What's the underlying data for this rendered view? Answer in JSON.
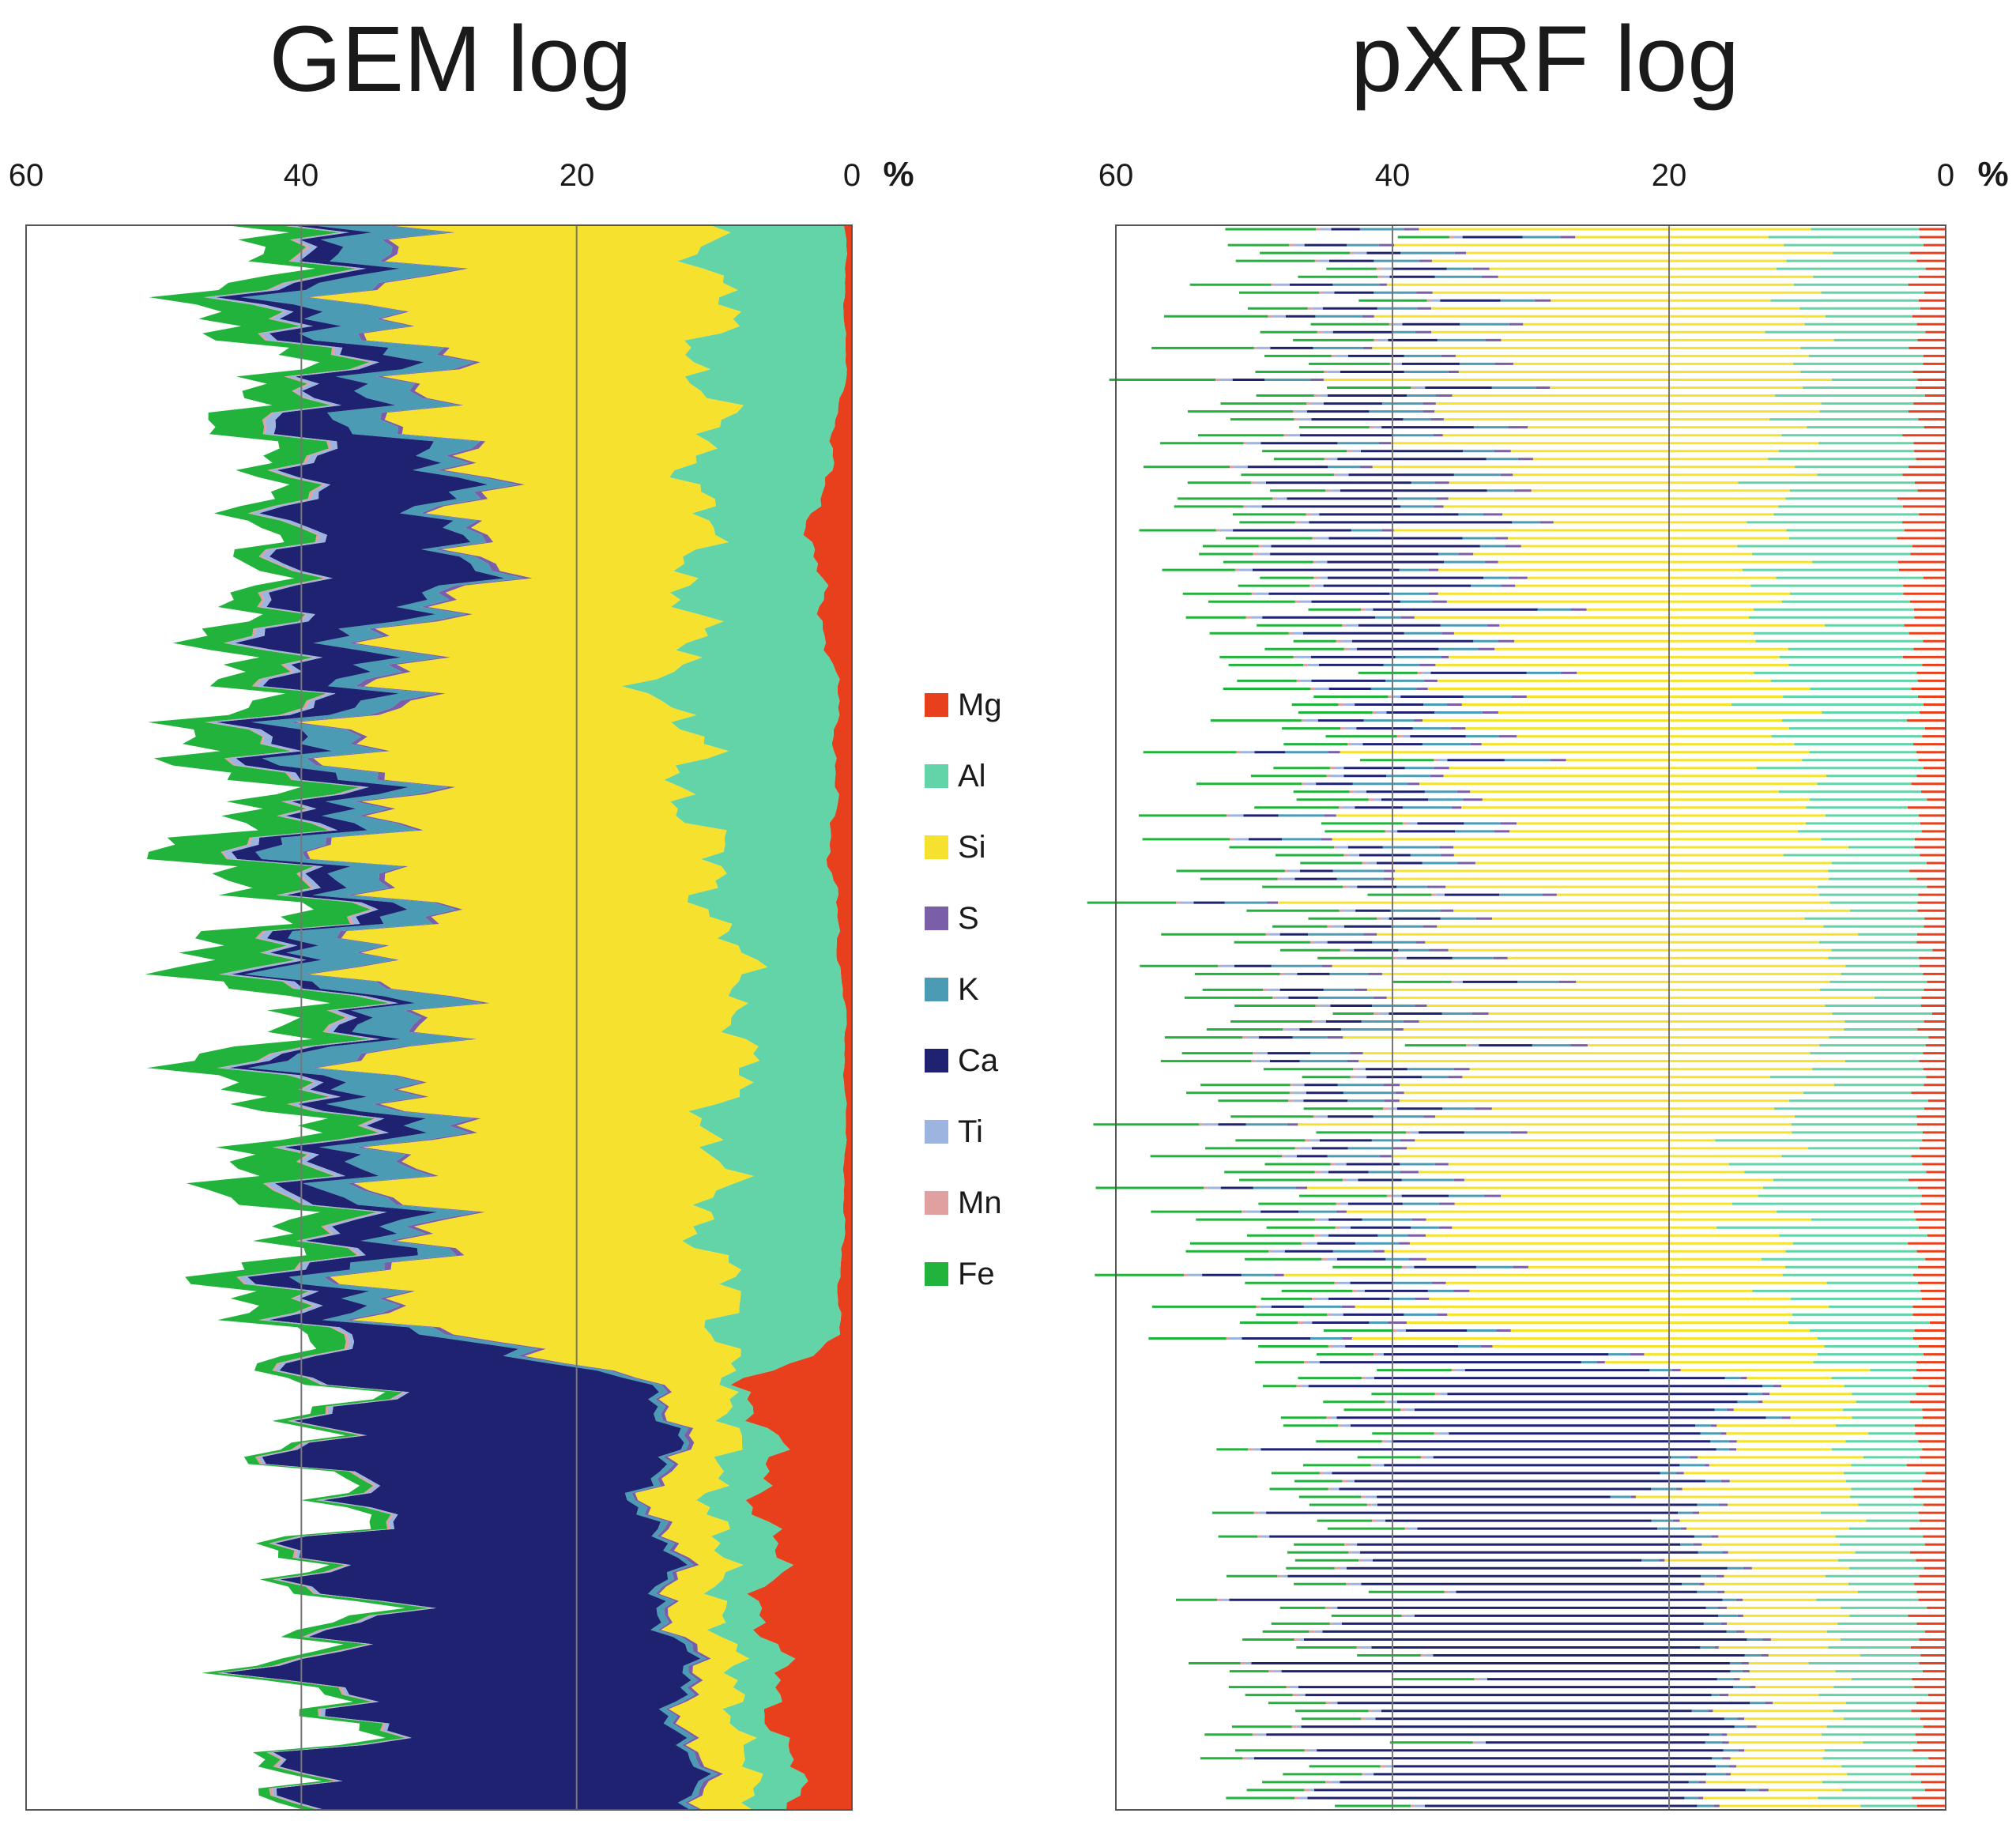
{
  "figure": {
    "left_title": "GEM log",
    "right_title": "pXRF log",
    "unit": "%"
  },
  "legend": [
    {
      "name": "Mg",
      "color": "#e8401c"
    },
    {
      "name": "Al",
      "color": "#63d3a8"
    },
    {
      "name": "Si",
      "color": "#f6e22e"
    },
    {
      "name": "S",
      "color": "#7a5fa8"
    },
    {
      "name": "K",
      "color": "#4b9bb5"
    },
    {
      "name": "Ca",
      "color": "#1e2270"
    },
    {
      "name": "Ti",
      "color": "#9db4e0"
    },
    {
      "name": "Mn",
      "color": "#e0a0a0"
    },
    {
      "name": "Fe",
      "color": "#22b33c"
    }
  ],
  "chart_data": [
    {
      "type": "area",
      "title": "GEM log",
      "orientation": "horizontal-stacked, depth downward",
      "xlim": [
        60,
        0
      ],
      "x_ticks": [
        "60",
        "40",
        "20",
        "0"
      ],
      "unit": "%",
      "grid": true,
      "series_order": [
        "Mg",
        "Al",
        "Si",
        "S",
        "K",
        "Ca",
        "Ti",
        "Mn",
        "Fe"
      ],
      "depth_fraction": [
        0,
        0.1,
        0.2,
        0.3,
        0.4,
        0.5,
        0.6,
        0.7,
        0.73,
        0.8,
        0.9,
        1.0
      ],
      "series": [
        {
          "name": "Mg",
          "values": [
            0.5,
            0.5,
            3,
            1,
            1.5,
            0.5,
            0.5,
            1,
            7,
            6,
            6,
            4
          ]
        },
        {
          "name": "Al",
          "values": [
            9,
            10,
            8,
            12,
            9,
            7,
            10,
            8,
            1,
            4,
            3,
            3
          ]
        },
        {
          "name": "Si",
          "values": [
            25,
            21,
            15,
            22,
            24,
            25,
            21,
            24,
            4,
            4,
            3,
            4
          ]
        },
        {
          "name": "S",
          "values": [
            0.4,
            0.4,
            0.5,
            0.6,
            0.4,
            0.4,
            0.5,
            0.5,
            0.3,
            0.3,
            0.3,
            0.3
          ]
        },
        {
          "name": "K",
          "values": [
            5,
            4,
            1,
            3,
            3,
            5,
            3,
            2,
            0.5,
            0.5,
            0.5,
            0.5
          ]
        },
        {
          "name": "Ca",
          "values": [
            1.5,
            3,
            13,
            3,
            2,
            1,
            3,
            4,
            26,
            22,
            25,
            26
          ]
        },
        {
          "name": "Ti",
          "values": [
            0.6,
            0.6,
            0.5,
            0.6,
            0.5,
            0.6,
            0.6,
            0.5,
            0.3,
            0.3,
            0.3,
            0.3
          ]
        },
        {
          "name": "Mn",
          "values": [
            0.2,
            0.2,
            0.2,
            0.2,
            0.2,
            0.2,
            0.2,
            0.2,
            0.2,
            0.2,
            0.2,
            0.2
          ]
        },
        {
          "name": "Fe",
          "values": [
            3.5,
            4,
            2,
            4,
            5,
            4.5,
            4.5,
            3,
            1,
            1,
            1.5,
            1
          ]
        }
      ]
    },
    {
      "type": "bar",
      "title": "pXRF log",
      "orientation": "horizontal-stacked, depth downward",
      "xlim": [
        60,
        0
      ],
      "x_ticks": [
        "60",
        "40",
        "20",
        "0"
      ],
      "unit": "%",
      "grid": true,
      "series_order": [
        "Mg",
        "Al",
        "Si",
        "S",
        "K",
        "Ca",
        "Ti",
        "Mn",
        "Fe"
      ],
      "depth_fraction": [
        0,
        0.1,
        0.2,
        0.3,
        0.4,
        0.5,
        0.6,
        0.7,
        0.73,
        0.8,
        0.9,
        1.0
      ],
      "series": [
        {
          "name": "Mg",
          "values": [
            2,
            2,
            3,
            2,
            2,
            1.5,
            2,
            2,
            2,
            2,
            2,
            2
          ]
        },
        {
          "name": "Al",
          "values": [
            9,
            8,
            10,
            10,
            7,
            6,
            12,
            8,
            5,
            5,
            6,
            6
          ]
        },
        {
          "name": "Si",
          "values": [
            24,
            26,
            20,
            22,
            28,
            30,
            24,
            28,
            5,
            12,
            6,
            8
          ]
        },
        {
          "name": "S",
          "values": [
            1,
            1,
            1,
            1,
            1,
            1,
            1,
            1,
            0.5,
            0.5,
            0.5,
            0.5
          ]
        },
        {
          "name": "K",
          "values": [
            3,
            3,
            2,
            3,
            3,
            3,
            3,
            2,
            1,
            1.5,
            1,
            1
          ]
        },
        {
          "name": "Ca",
          "values": [
            3,
            4,
            12,
            4,
            3,
            3,
            3,
            4,
            26,
            22,
            28,
            26
          ]
        },
        {
          "name": "Ti",
          "values": [
            0.8,
            0.8,
            0.8,
            0.8,
            0.8,
            0.8,
            0.8,
            0.8,
            0.6,
            0.6,
            0.6,
            0.6
          ]
        },
        {
          "name": "Mn",
          "values": [
            0.3,
            0.3,
            0.3,
            0.3,
            0.3,
            0.3,
            0.3,
            0.3,
            0.3,
            0.3,
            0.3,
            0.3
          ]
        },
        {
          "name": "Fe",
          "values": [
            5,
            6,
            5,
            5,
            6,
            5,
            7,
            5,
            4,
            4,
            4,
            5
          ]
        }
      ]
    }
  ]
}
